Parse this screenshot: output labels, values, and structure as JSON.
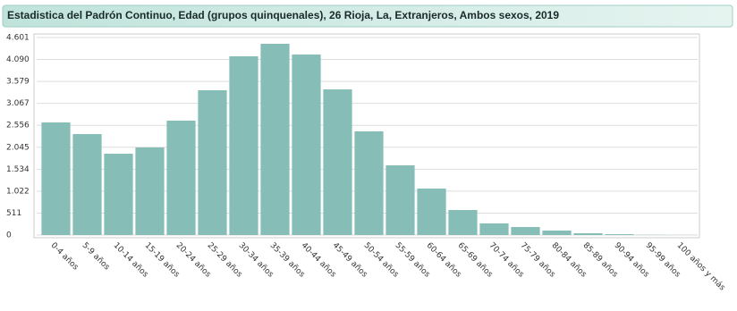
{
  "chart_data": {
    "type": "bar",
    "title": "Estadistica del Padrón Continuo, Edad (grupos quinquenales), 26 Rioja, La, Extranjeros, Ambos sexos, 2019",
    "categories": [
      "0-4 años",
      "5-9 años",
      "10-14 años",
      "15-19 años",
      "20-24 años",
      "25-29 años",
      "30-34 años",
      "35-39 años",
      "40-44 años",
      "45-49 años",
      "50-54 años",
      "55-59 años",
      "60-64 años",
      "65-69 años",
      "70-74 años",
      "75-79 años",
      "80-84 años",
      "85-89 años",
      "90-94 años",
      "95-99 años",
      "100 años y más"
    ],
    "values": [
      2623,
      2352,
      1894,
      2040,
      2665,
      3373,
      4164,
      4455,
      4205,
      3393,
      2415,
      1624,
      1083,
      583,
      271,
      187,
      104,
      42,
      20,
      5,
      2
    ],
    "color": "#86bdb6",
    "ylim": [
      0,
      4601
    ],
    "yticks": [
      0,
      511,
      {
        "value": 1022,
        "label": "1.022"
      },
      {
        "value": 1534,
        "label": "1.534"
      },
      {
        "value": 2045,
        "label": "2.045"
      },
      {
        "value": 2556,
        "label": "2.556"
      },
      {
        "value": 3067,
        "label": "3.067"
      },
      {
        "value": 3579,
        "label": "3.579"
      },
      {
        "value": 4090,
        "label": "4.090"
      },
      {
        "value": 4601,
        "label": "4.601"
      }
    ],
    "grid": true
  }
}
